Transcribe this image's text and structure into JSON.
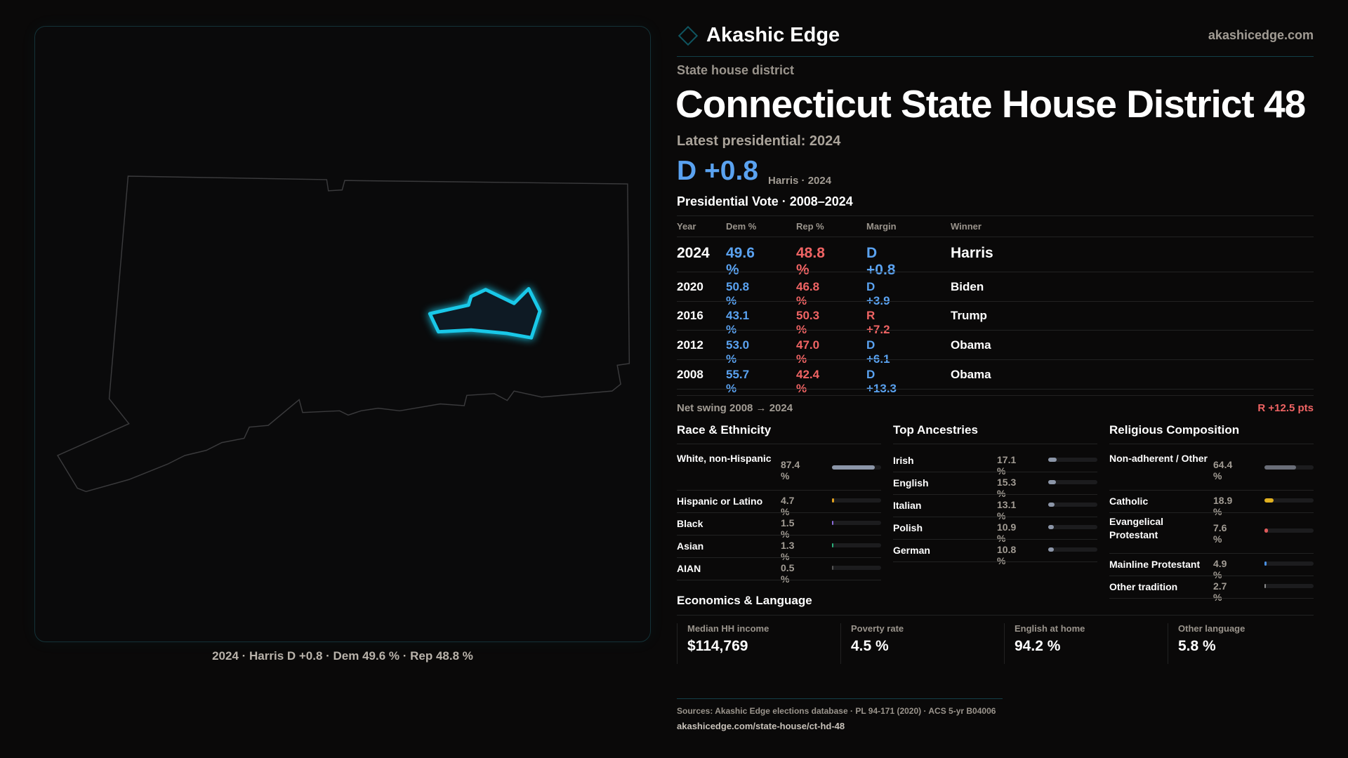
{
  "brand": {
    "name": "Akashic Edge",
    "site": "akashicedge.com",
    "logo_icon": "diamond-icon"
  },
  "district": {
    "kind": "State house district",
    "title": "Connecticut State House District 48"
  },
  "latest": {
    "label": "Latest presidential: 2024",
    "margin": "D +0.8",
    "sub": "Harris · 2024"
  },
  "map": {
    "caption": "2024 · Harris D +0.8 · Dem 49.6 % · Rep 48.8 %",
    "highlight_color": "#19c8e8"
  },
  "pres_table": {
    "title": "Presidential Vote · 2008–2024",
    "headers": [
      "Year",
      "Dem %",
      "Rep %",
      "Margin",
      "Winner"
    ],
    "rows": [
      {
        "year": "2024",
        "dem": "49.6 %",
        "rep": "48.8 %",
        "margin": "D +0.8",
        "party": "D",
        "winner": "Harris"
      },
      {
        "year": "2020",
        "dem": "50.8 %",
        "rep": "46.8 %",
        "margin": "D +3.9",
        "party": "D",
        "winner": "Biden"
      },
      {
        "year": "2016",
        "dem": "43.1 %",
        "rep": "50.3 %",
        "margin": "R +7.2",
        "party": "R",
        "winner": "Trump"
      },
      {
        "year": "2012",
        "dem": "53.0 %",
        "rep": "47.0 %",
        "margin": "D +6.1",
        "party": "D",
        "winner": "Obama"
      },
      {
        "year": "2008",
        "dem": "55.7 %",
        "rep": "42.4 %",
        "margin": "D +13.3",
        "party": "D",
        "winner": "Obama"
      }
    ]
  },
  "swing": {
    "label": "Net swing 2008 → 2024",
    "value": "R +12.5 pts"
  },
  "race": {
    "title": "Race & Ethnicity",
    "items": [
      {
        "label": "White, non-Hispanic",
        "value": "87.4 %",
        "pct": 87.4,
        "color": "#8c96a8"
      },
      {
        "label": "Hispanic or Latino",
        "value": "4.7 %",
        "pct": 4.7,
        "color": "#e0a020"
      },
      {
        "label": "Black",
        "value": "1.5 %",
        "pct": 1.5,
        "color": "#8a6ad8"
      },
      {
        "label": "Asian",
        "value": "1.3 %",
        "pct": 1.3,
        "color": "#2ab07a"
      },
      {
        "label": "AIAN",
        "value": "0.5 %",
        "pct": 0.5,
        "color": "#555"
      }
    ]
  },
  "ancestry": {
    "title": "Top Ancestries",
    "items": [
      {
        "label": "Irish",
        "value": "17.1 %",
        "pct": 17.1,
        "color": "#8c96a8"
      },
      {
        "label": "English",
        "value": "15.3 %",
        "pct": 15.3,
        "color": "#8c96a8"
      },
      {
        "label": "Italian",
        "value": "13.1 %",
        "pct": 13.1,
        "color": "#8c96a8"
      },
      {
        "label": "Polish",
        "value": "10.9 %",
        "pct": 10.9,
        "color": "#8c96a8"
      },
      {
        "label": "German",
        "value": "10.8 %",
        "pct": 10.8,
        "color": "#8c96a8"
      }
    ]
  },
  "religion": {
    "title": "Religious Composition",
    "items": [
      {
        "label": "Non-adherent / Other",
        "value": "64.4 %",
        "pct": 64.4,
        "color": "#6a6e78"
      },
      {
        "label": "Catholic",
        "value": "18.9 %",
        "pct": 18.9,
        "color": "#e0b020"
      },
      {
        "label": "Evangelical Protestant",
        "value": "7.6 %",
        "pct": 7.6,
        "color": "#e05a5a"
      },
      {
        "label": "Mainline Protestant",
        "value": "4.9 %",
        "pct": 4.9,
        "color": "#4a90e2"
      },
      {
        "label": "Other tradition",
        "value": "2.7 %",
        "pct": 2.7,
        "color": "#8a8a8a"
      }
    ]
  },
  "economics": {
    "title": "Economics & Language",
    "stats": [
      {
        "label": "Median HH income",
        "value": "$114,769"
      },
      {
        "label": "Poverty rate",
        "value": "4.5 %"
      },
      {
        "label": "English at home",
        "value": "94.2 %"
      },
      {
        "label": "Other language",
        "value": "5.8 %"
      }
    ]
  },
  "footer": {
    "sources": "Sources: Akashic Edge elections database · PL 94-171 (2020) · ACS 5-yr B04006",
    "url": "akashicedge.com/state-house/ct-hd-48"
  },
  "colors": {
    "dem": "#5aa2f0",
    "rep": "#f06464",
    "accent": "#19c8e8"
  }
}
